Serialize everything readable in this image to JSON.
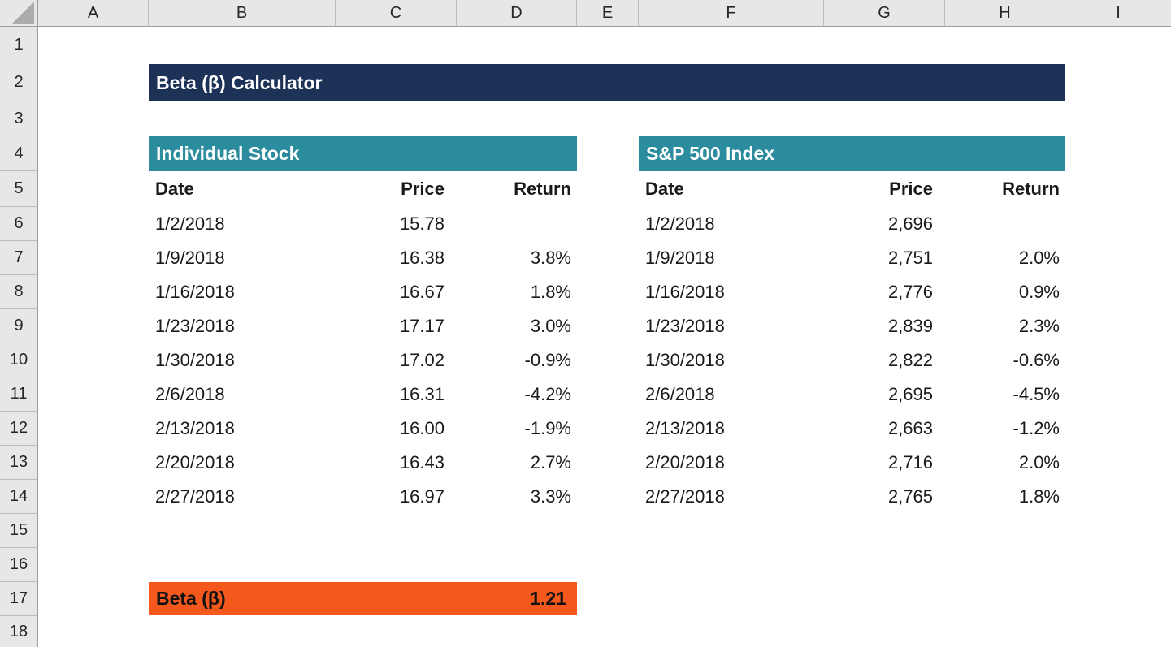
{
  "grid": {
    "column_labels": [
      "A",
      "B",
      "C",
      "D",
      "E",
      "F",
      "G",
      "H",
      "I"
    ],
    "row_labels": [
      "1",
      "2",
      "3",
      "4",
      "5",
      "6",
      "7",
      "8",
      "9",
      "10",
      "11",
      "12",
      "13",
      "14",
      "15",
      "16",
      "17",
      "18"
    ]
  },
  "title": {
    "label": "Beta (β) Calculator"
  },
  "colors": {
    "title_bg": "#1c3357",
    "section_bg": "#2a8c9d",
    "beta_bg": "#f4581c",
    "header_bg": "#e7e7e7"
  },
  "tables": {
    "individual_stock": {
      "title": "Individual Stock",
      "columns": [
        "Date",
        "Price",
        "Return"
      ],
      "rows": [
        {
          "date": "1/2/2018",
          "price": "15.78",
          "ret": ""
        },
        {
          "date": "1/9/2018",
          "price": "16.38",
          "ret": "3.8%"
        },
        {
          "date": "1/16/2018",
          "price": "16.67",
          "ret": "1.8%"
        },
        {
          "date": "1/23/2018",
          "price": "17.17",
          "ret": "3.0%"
        },
        {
          "date": "1/30/2018",
          "price": "17.02",
          "ret": "-0.9%"
        },
        {
          "date": "2/6/2018",
          "price": "16.31",
          "ret": "-4.2%"
        },
        {
          "date": "2/13/2018",
          "price": "16.00",
          "ret": "-1.9%"
        },
        {
          "date": "2/20/2018",
          "price": "16.43",
          "ret": "2.7%"
        },
        {
          "date": "2/27/2018",
          "price": "16.97",
          "ret": "3.3%"
        }
      ]
    },
    "sp500": {
      "title": "S&P 500 Index",
      "columns": [
        "Date",
        "Price",
        "Return"
      ],
      "rows": [
        {
          "date": "1/2/2018",
          "price": "2,696",
          "ret": ""
        },
        {
          "date": "1/9/2018",
          "price": "2,751",
          "ret": "2.0%"
        },
        {
          "date": "1/16/2018",
          "price": "2,776",
          "ret": "0.9%"
        },
        {
          "date": "1/23/2018",
          "price": "2,839",
          "ret": "2.3%"
        },
        {
          "date": "1/30/2018",
          "price": "2,822",
          "ret": "-0.6%"
        },
        {
          "date": "2/6/2018",
          "price": "2,695",
          "ret": "-4.5%"
        },
        {
          "date": "2/13/2018",
          "price": "2,663",
          "ret": "-1.2%"
        },
        {
          "date": "2/20/2018",
          "price": "2,716",
          "ret": "2.0%"
        },
        {
          "date": "2/27/2018",
          "price": "2,765",
          "ret": "1.8%"
        }
      ]
    }
  },
  "beta": {
    "label": "Beta (β)",
    "value": "1.21"
  }
}
